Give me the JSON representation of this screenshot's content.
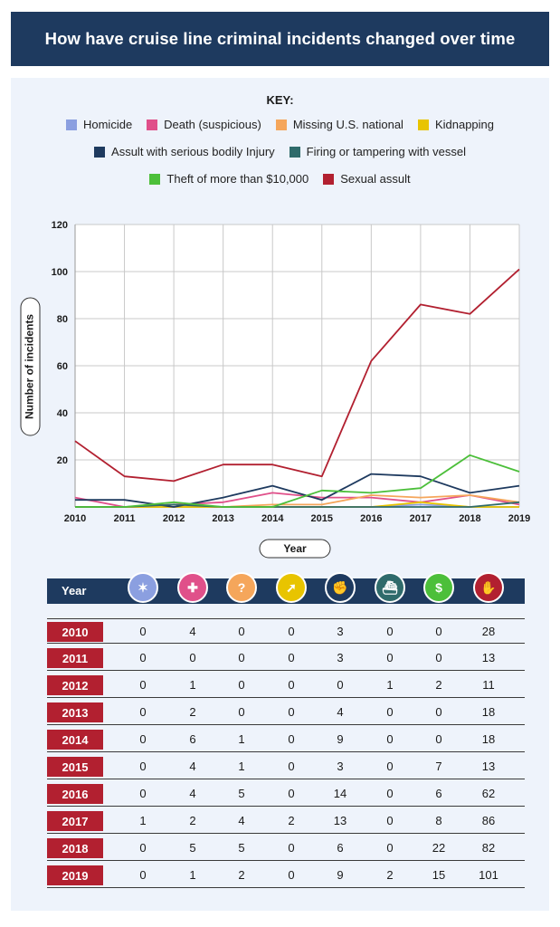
{
  "header": {
    "title": "How have cruise line criminal incidents changed over time"
  },
  "legend": {
    "title": "KEY:",
    "rows": [
      [
        0,
        1,
        2,
        3
      ],
      [
        4,
        5
      ],
      [
        6,
        7
      ]
    ]
  },
  "chart_data": {
    "type": "line",
    "title": "How have cruise line criminal incidents changed over time",
    "xlabel": "Year",
    "ylabel": "Number of incidents",
    "x": [
      2010,
      2011,
      2012,
      2013,
      2014,
      2015,
      2016,
      2017,
      2018,
      2019
    ],
    "ylim": [
      0,
      120
    ],
    "yticks": [
      20,
      40,
      60,
      80,
      100,
      120
    ],
    "grid": true,
    "legend_position": "top",
    "series": [
      {
        "name": "Homicide",
        "color": "#8b9fe0",
        "icon": "homicide-icon",
        "values": [
          0,
          0,
          0,
          0,
          0,
          0,
          0,
          1,
          0,
          0
        ]
      },
      {
        "name": "Death (suspicious)",
        "color": "#e0508a",
        "icon": "coffin-icon",
        "values": [
          4,
          0,
          1,
          2,
          6,
          4,
          4,
          2,
          5,
          1
        ]
      },
      {
        "name": "Missing U.S. national",
        "color": "#f5a65b",
        "icon": "missing-person-icon",
        "values": [
          0,
          0,
          0,
          0,
          1,
          1,
          5,
          4,
          5,
          2
        ]
      },
      {
        "name": "Kidnapping",
        "color": "#e8c400",
        "icon": "running-person-icon",
        "values": [
          0,
          0,
          0,
          0,
          0,
          0,
          0,
          2,
          0,
          0
        ]
      },
      {
        "name": "Assult with serious bodily Injury",
        "color": "#1e3a5f",
        "icon": "fist-icon",
        "values": [
          3,
          3,
          0,
          4,
          9,
          3,
          14,
          13,
          6,
          9
        ]
      },
      {
        "name": "Firing or tampering with vessel",
        "color": "#2f6b6b",
        "icon": "ship-icon",
        "values": [
          0,
          0,
          1,
          0,
          0,
          0,
          0,
          0,
          0,
          2
        ]
      },
      {
        "name": "Theft of more than $10,000",
        "color": "#4cbf3a",
        "icon": "money-bag-icon",
        "values": [
          0,
          0,
          2,
          0,
          0,
          7,
          6,
          8,
          22,
          15
        ]
      },
      {
        "name": "Sexual assult",
        "color": "#b22030",
        "icon": "stop-hand-icon",
        "values": [
          28,
          13,
          11,
          18,
          18,
          13,
          62,
          86,
          82,
          101
        ]
      }
    ]
  },
  "table": {
    "year_header": "Year",
    "icon_colors": [
      "#8b9fe0",
      "#e0508a",
      "#f5a65b",
      "#e8c400",
      "#1e3a5f",
      "#2f6b6b",
      "#4cbf3a",
      "#b22030"
    ],
    "icon_glyphs": [
      "✶",
      "✚",
      "?",
      "➚",
      "✊",
      "⛴",
      "$",
      "✋"
    ],
    "icon_names": [
      "homicide-icon",
      "coffin-icon",
      "missing-person-icon",
      "running-person-icon",
      "fist-icon",
      "ship-icon",
      "money-bag-icon",
      "stop-hand-icon"
    ],
    "rows": [
      {
        "year": "2010",
        "values": [
          "0",
          "4",
          "0",
          "0",
          "3",
          "0",
          "0",
          "28"
        ]
      },
      {
        "year": "2011",
        "values": [
          "0",
          "0",
          "0",
          "0",
          "3",
          "0",
          "0",
          "13"
        ]
      },
      {
        "year": "2012",
        "values": [
          "0",
          "1",
          "0",
          "0",
          "0",
          "1",
          "2",
          "11"
        ]
      },
      {
        "year": "2013",
        "values": [
          "0",
          "2",
          "0",
          "0",
          "4",
          "0",
          "0",
          "18"
        ]
      },
      {
        "year": "2014",
        "values": [
          "0",
          "6",
          "1",
          "0",
          "9",
          "0",
          "0",
          "18"
        ]
      },
      {
        "year": "2015",
        "values": [
          "0",
          "4",
          "1",
          "0",
          "3",
          "0",
          "7",
          "13"
        ]
      },
      {
        "year": "2016",
        "values": [
          "0",
          "4",
          "5",
          "0",
          "14",
          "0",
          "6",
          "62"
        ]
      },
      {
        "year": "2017",
        "values": [
          "1",
          "2",
          "4",
          "2",
          "13",
          "0",
          "8",
          "86"
        ]
      },
      {
        "year": "2018",
        "values": [
          "0",
          "5",
          "5",
          "0",
          "6",
          "0",
          "22",
          "82"
        ]
      },
      {
        "year": "2019",
        "values": [
          "0",
          "1",
          "2",
          "0",
          "9",
          "2",
          "15",
          "101"
        ]
      }
    ]
  }
}
